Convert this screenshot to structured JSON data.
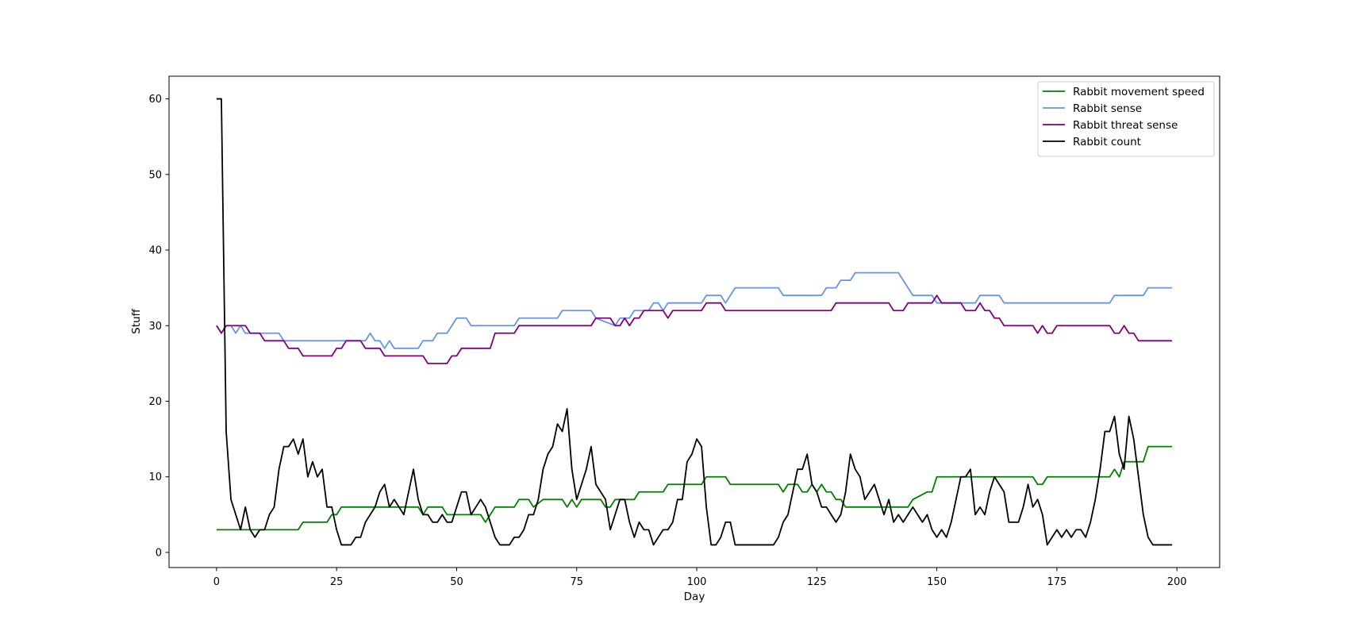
{
  "chart_data": {
    "type": "line",
    "title": "",
    "xlabel": "Day",
    "ylabel": "Stuff",
    "xlim": [
      -9.9,
      208.9
    ],
    "ylim": [
      -2,
      63
    ],
    "xticks": [
      0,
      25,
      50,
      75,
      100,
      125,
      150,
      175,
      200
    ],
    "yticks": [
      0,
      10,
      20,
      30,
      40,
      50,
      60
    ],
    "grid": false,
    "legend": "top-right",
    "series": [
      {
        "name": "Rabbit movement speed",
        "color": "#008000",
        "x": [
          0,
          17,
          18,
          23,
          24,
          25,
          26,
          37,
          38,
          42,
          43,
          44,
          47,
          48,
          55,
          56,
          57,
          58,
          62,
          63,
          65,
          66,
          68,
          69,
          72,
          73,
          74,
          75,
          76,
          77,
          80,
          81,
          82,
          83,
          84,
          87,
          88,
          93,
          94,
          101,
          102,
          106,
          107,
          117,
          118,
          119,
          121,
          122,
          123,
          124,
          125,
          126,
          127,
          128,
          129,
          130,
          131,
          132,
          133,
          144,
          145,
          148,
          149,
          150,
          170,
          171,
          172,
          173,
          186,
          187,
          188,
          189,
          193,
          194,
          199
        ],
        "values": [
          3,
          3,
          4,
          4,
          5,
          5,
          6,
          6,
          6,
          6,
          5,
          6,
          6,
          5,
          5,
          4,
          5,
          6,
          6,
          7,
          7,
          6,
          7,
          7,
          7,
          6,
          7,
          6,
          7,
          7,
          7,
          6,
          6,
          7,
          7,
          7,
          8,
          8,
          9,
          9,
          10,
          10,
          9,
          9,
          8,
          9,
          9,
          8,
          8,
          9,
          8,
          9,
          8,
          8,
          7,
          7,
          6,
          6,
          6,
          6,
          7,
          8,
          8,
          10,
          10,
          9,
          9,
          10,
          10,
          11,
          10,
          12,
          12,
          14,
          14
        ]
      },
      {
        "name": "Rabbit sense",
        "color": "#6495ED",
        "x": [
          0,
          1,
          2,
          3,
          4,
          5,
          6,
          13,
          14,
          27,
          28,
          31,
          32,
          33,
          34,
          35,
          36,
          37,
          42,
          43,
          45,
          46,
          48,
          49,
          50,
          52,
          53,
          62,
          63,
          71,
          72,
          78,
          79,
          83,
          84,
          86,
          87,
          89,
          90,
          91,
          92,
          93,
          94,
          101,
          102,
          105,
          106,
          107,
          108,
          117,
          118,
          126,
          127,
          129,
          130,
          132,
          133,
          141,
          142,
          145,
          146,
          149,
          150,
          158,
          159,
          163,
          164,
          186,
          187,
          193,
          194,
          199
        ],
        "values": [
          30,
          29,
          30,
          30,
          29,
          30,
          29,
          29,
          28,
          28,
          28,
          28,
          29,
          28,
          28,
          27,
          28,
          27,
          27,
          28,
          28,
          29,
          29,
          30,
          31,
          31,
          30,
          30,
          31,
          31,
          32,
          32,
          31,
          30,
          31,
          31,
          32,
          32,
          32,
          33,
          33,
          32,
          33,
          33,
          34,
          34,
          33,
          34,
          35,
          35,
          34,
          34,
          35,
          35,
          36,
          36,
          37,
          37,
          37,
          34,
          34,
          34,
          33,
          33,
          34,
          34,
          33,
          33,
          34,
          34,
          35,
          35
        ]
      },
      {
        "name": "Rabbit threat sense",
        "color": "#800080",
        "x": [
          0,
          1,
          2,
          5,
          6,
          7,
          9,
          10,
          14,
          15,
          17,
          18,
          24,
          25,
          26,
          27,
          28,
          30,
          31,
          34,
          35,
          43,
          44,
          48,
          49,
          50,
          51,
          57,
          58,
          62,
          63,
          78,
          79,
          82,
          83,
          84,
          85,
          86,
          87,
          88,
          89,
          90,
          93,
          94,
          95,
          101,
          102,
          105,
          106,
          128,
          129,
          140,
          141,
          143,
          144,
          149,
          150,
          151,
          155,
          156,
          158,
          159,
          160,
          161,
          162,
          163,
          164,
          170,
          171,
          172,
          173,
          174,
          175,
          186,
          187,
          188,
          189,
          190,
          191,
          192,
          193,
          199
        ],
        "values": [
          30,
          29,
          30,
          30,
          30,
          29,
          29,
          28,
          28,
          27,
          27,
          26,
          26,
          27,
          27,
          28,
          28,
          28,
          27,
          27,
          26,
          26,
          25,
          25,
          26,
          26,
          27,
          27,
          29,
          29,
          30,
          30,
          31,
          31,
          30,
          30,
          31,
          30,
          31,
          31,
          32,
          32,
          32,
          31,
          32,
          32,
          33,
          33,
          32,
          32,
          33,
          33,
          32,
          32,
          33,
          33,
          34,
          33,
          33,
          32,
          32,
          33,
          32,
          32,
          31,
          31,
          30,
          30,
          29,
          30,
          29,
          29,
          30,
          30,
          29,
          29,
          30,
          29,
          29,
          28,
          28,
          28
        ]
      },
      {
        "name": "Rabbit count",
        "color": "#000000",
        "x": [
          0,
          1,
          2,
          3,
          4,
          5,
          6,
          7,
          8,
          9,
          10,
          11,
          12,
          13,
          14,
          15,
          16,
          17,
          18,
          19,
          20,
          21,
          22,
          23,
          24,
          25,
          26,
          27,
          28,
          29,
          30,
          31,
          32,
          33,
          34,
          35,
          36,
          37,
          38,
          39,
          40,
          41,
          42,
          43,
          44,
          45,
          46,
          47,
          48,
          49,
          50,
          51,
          52,
          53,
          54,
          55,
          56,
          57,
          58,
          59,
          60,
          61,
          62,
          63,
          64,
          65,
          66,
          67,
          68,
          69,
          70,
          71,
          72,
          73,
          74,
          75,
          76,
          77,
          78,
          79,
          80,
          81,
          82,
          83,
          84,
          85,
          86,
          87,
          88,
          89,
          90,
          91,
          92,
          93,
          94,
          95,
          96,
          97,
          98,
          99,
          100,
          101,
          102,
          103,
          104,
          105,
          106,
          107,
          108,
          116,
          117,
          118,
          119,
          120,
          121,
          122,
          123,
          124,
          125,
          126,
          127,
          128,
          129,
          130,
          131,
          132,
          133,
          134,
          135,
          136,
          137,
          138,
          139,
          140,
          141,
          142,
          143,
          144,
          145,
          146,
          147,
          148,
          149,
          150,
          151,
          152,
          153,
          154,
          155,
          156,
          157,
          158,
          159,
          160,
          161,
          162,
          163,
          164,
          165,
          166,
          167,
          168,
          169,
          170,
          171,
          172,
          173,
          174,
          175,
          176,
          177,
          178,
          179,
          180,
          181,
          182,
          183,
          184,
          185,
          186,
          187,
          188,
          189,
          190,
          191,
          192,
          193,
          194,
          195,
          196,
          197,
          198,
          199
        ],
        "values": [
          60,
          60,
          16,
          7,
          5,
          3,
          6,
          3,
          2,
          3,
          3,
          5,
          6,
          11,
          14,
          14,
          15,
          13,
          15,
          10,
          12,
          10,
          11,
          6,
          6,
          3,
          1,
          1,
          1,
          2,
          2,
          4,
          5,
          6,
          8,
          9,
          6,
          7,
          6,
          5,
          8,
          11,
          7,
          5,
          5,
          4,
          4,
          5,
          4,
          4,
          6,
          8,
          8,
          5,
          6,
          7,
          6,
          4,
          2,
          1,
          1,
          1,
          2,
          2,
          3,
          5,
          5,
          7,
          11,
          13,
          14,
          17,
          16,
          19,
          11,
          7,
          9,
          11,
          14,
          9,
          8,
          7,
          3,
          5,
          7,
          7,
          4,
          2,
          4,
          3,
          3,
          1,
          2,
          3,
          3,
          4,
          7,
          7,
          12,
          13,
          15,
          14,
          6,
          1,
          1,
          2,
          4,
          4,
          1,
          1,
          2,
          4,
          5,
          8,
          11,
          11,
          13,
          9,
          8,
          6,
          6,
          5,
          4,
          5,
          8,
          13,
          11,
          10,
          7,
          8,
          9,
          7,
          5,
          7,
          4,
          5,
          4,
          5,
          6,
          5,
          4,
          5,
          3,
          2,
          3,
          2,
          4,
          7,
          10,
          10,
          11,
          5,
          6,
          5,
          8,
          10,
          9,
          8,
          4,
          4,
          4,
          6,
          9,
          6,
          7,
          5,
          1,
          2,
          3,
          2,
          3,
          2,
          3,
          3,
          2,
          4,
          7,
          11,
          16,
          16,
          18,
          13,
          11,
          18,
          15,
          10,
          5,
          2,
          1,
          1,
          1,
          1,
          1
        ]
      }
    ]
  }
}
